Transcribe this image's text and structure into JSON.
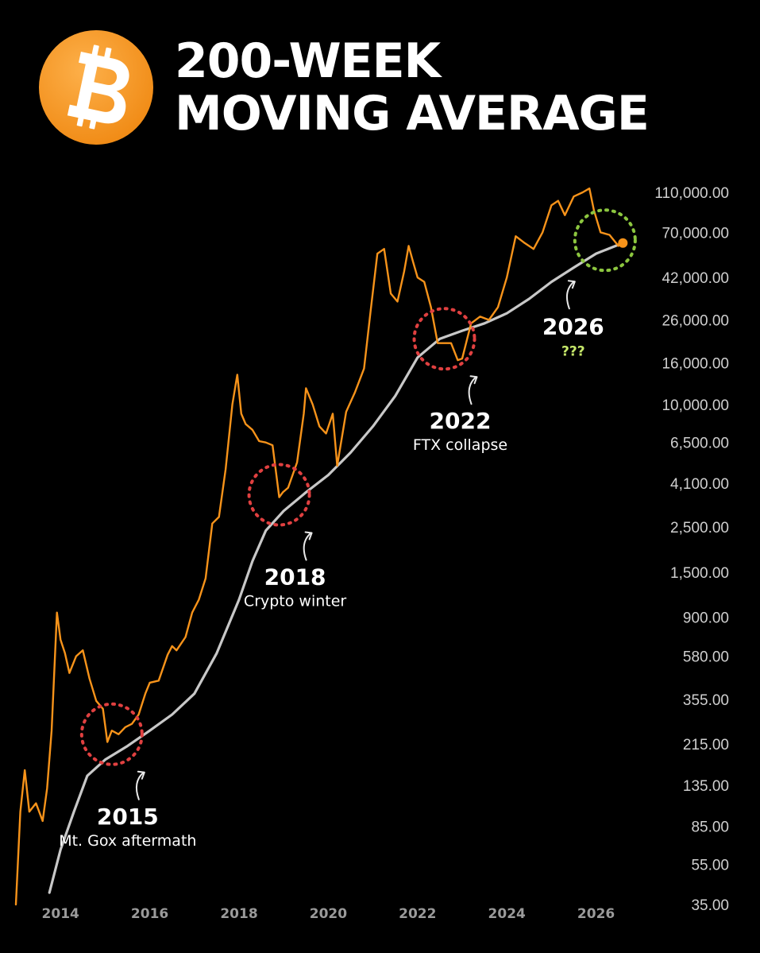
{
  "header": {
    "title_line1": "200-WEEK",
    "title_line2": "MOVING AVERAGE",
    "logo_icon": "bitcoin-icon"
  },
  "colors": {
    "background": "#000000",
    "price_line": "#F7931A",
    "moving_average": "#C8C8C8",
    "support_circle": "#E04040",
    "future_circle": "#8CC63F",
    "question_text": "#C6E86A"
  },
  "chart_data": {
    "type": "line",
    "title": "200-WEEK MOVING AVERAGE",
    "xlabel": "",
    "ylabel": "",
    "y_scale": "log",
    "ylim": [
      35,
      140000
    ],
    "xlim": [
      2013.0,
      2027.0
    ],
    "x_ticks": [
      "2014",
      "2016",
      "2018",
      "2020",
      "2022",
      "2024",
      "2026"
    ],
    "y_ticks": [
      "110,000.00",
      "70,000.00",
      "42,000.00",
      "26,000.00",
      "16,000.00",
      "10,000.00",
      "6,500.00",
      "4,100.00",
      "2,500.00",
      "1,500.00",
      "900.00",
      "580.00",
      "355.00",
      "215.00",
      "135.00",
      "85.00",
      "55.00",
      "35.00"
    ],
    "y_tick_values": [
      110000,
      70000,
      42000,
      26000,
      16000,
      10000,
      6500,
      4100,
      2500,
      1500,
      900,
      580,
      355,
      215,
      135,
      85,
      55,
      35
    ],
    "grid": false,
    "legend": "none",
    "series": [
      {
        "key": "price",
        "x": [
          2013.0,
          2013.1,
          2013.2,
          2013.3,
          2013.45,
          2013.6,
          2013.7,
          2013.8,
          2013.92,
          2014.0,
          2014.1,
          2014.2,
          2014.35,
          2014.5,
          2014.65,
          2014.8,
          2014.95,
          2015.05,
          2015.15,
          2015.3,
          2015.45,
          2015.6,
          2015.75,
          2015.9,
          2016.0,
          2016.2,
          2016.4,
          2016.5,
          2016.6,
          2016.8,
          2016.95,
          2017.1,
          2017.25,
          2017.4,
          2017.55,
          2017.7,
          2017.85,
          2017.96,
          2018.05,
          2018.15,
          2018.3,
          2018.45,
          2018.6,
          2018.75,
          2018.9,
          2018.98,
          2019.1,
          2019.3,
          2019.45,
          2019.5,
          2019.65,
          2019.8,
          2019.95,
          2020.1,
          2020.2,
          2020.4,
          2020.6,
          2020.8,
          2020.95,
          2021.1,
          2021.25,
          2021.4,
          2021.55,
          2021.7,
          2021.8,
          2021.9,
          2022.0,
          2022.15,
          2022.3,
          2022.45,
          2022.6,
          2022.75,
          2022.9,
          2023.0,
          2023.2,
          2023.4,
          2023.6,
          2023.8,
          2024.0,
          2024.2,
          2024.4,
          2024.6,
          2024.8,
          2025.0,
          2025.15,
          2025.3,
          2025.5,
          2025.7,
          2025.85,
          2025.95,
          2026.1,
          2026.3,
          2026.5,
          2026.6
        ],
        "values": [
          35,
          100,
          160,
          100,
          110,
          90,
          130,
          250,
          950,
          700,
          600,
          480,
          580,
          620,
          450,
          350,
          320,
          220,
          250,
          240,
          260,
          270,
          300,
          380,
          430,
          440,
          590,
          650,
          620,
          720,
          950,
          1100,
          1400,
          2600,
          2800,
          4800,
          10000,
          14000,
          9000,
          8000,
          7500,
          6600,
          6500,
          6300,
          3500,
          3700,
          3900,
          5200,
          9000,
          12000,
          10000,
          7800,
          7200,
          9000,
          5000,
          9200,
          11500,
          15000,
          29000,
          55000,
          58000,
          35000,
          32000,
          45000,
          60000,
          50000,
          42000,
          40000,
          30000,
          20000,
          20000,
          20000,
          16500,
          16800,
          25000,
          27000,
          26000,
          30000,
          42000,
          67000,
          62000,
          58000,
          70000,
          95000,
          100000,
          85000,
          105000,
          110000,
          115000,
          90000,
          70000,
          68000,
          60000,
          62000
        ]
      },
      {
        "key": "ma200w",
        "x": [
          2013.75,
          2014.0,
          2014.3,
          2014.6,
          2015.0,
          2015.5,
          2016.0,
          2016.5,
          2017.0,
          2017.5,
          2018.0,
          2018.3,
          2018.6,
          2019.0,
          2019.5,
          2020.0,
          2020.5,
          2021.0,
          2021.5,
          2022.0,
          2022.5,
          2023.0,
          2023.5,
          2024.0,
          2024.5,
          2025.0,
          2025.5,
          2026.0,
          2026.6
        ],
        "values": [
          40,
          65,
          100,
          150,
          180,
          210,
          250,
          300,
          380,
          600,
          1100,
          1700,
          2400,
          3000,
          3700,
          4500,
          5800,
          7800,
          11000,
          17000,
          21000,
          23000,
          25000,
          28000,
          33000,
          40000,
          47000,
          55000,
          62000
        ]
      }
    ],
    "annotations": [
      {
        "year": "2015",
        "text": "Mt. Gox aftermath",
        "x": 2015.15,
        "y": 240,
        "circle": "red"
      },
      {
        "year": "2018",
        "text": "Crypto winter",
        "x": 2018.9,
        "y": 3600,
        "circle": "red"
      },
      {
        "year": "2022",
        "text": "FTX collapse",
        "x": 2022.6,
        "y": 21000,
        "circle": "red"
      },
      {
        "year": "2026",
        "text": "???",
        "x": 2026.2,
        "y": 64000,
        "circle": "green"
      }
    ]
  }
}
